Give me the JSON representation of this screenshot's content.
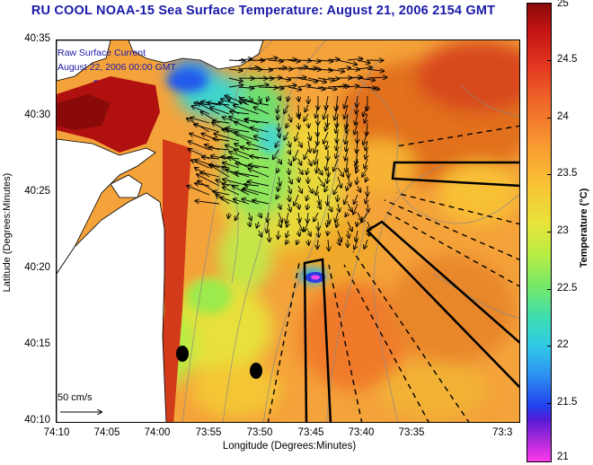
{
  "title": "RU COOL  NOAA-15  Sea Surface Temperature:  August 21, 2006 2154 GMT",
  "legend": {
    "line1": "Raw Surface Current",
    "line2": "August 22, 2006 00:00 GMT"
  },
  "scale_label": "50 cm/s",
  "x_axis": {
    "label": "Longitude (Degrees:Minutes)",
    "ticks": [
      "74:10",
      "74:05",
      "74:00",
      "73:55",
      "73:50",
      "73:45",
      "73:40",
      "73:35",
      "73:3"
    ]
  },
  "y_axis": {
    "label": "Latitude (Degrees:Minutes)",
    "ticks": [
      "40:35",
      "40:30",
      "40:25",
      "40:20",
      "40:15",
      "40:10"
    ]
  },
  "colorbar": {
    "label": "Temperature (°C)",
    "ticks": [
      "25",
      "24.5",
      "24",
      "23.5",
      "23",
      "22.5",
      "22",
      "21.5",
      "21"
    ],
    "range": [
      21,
      25
    ]
  },
  "colors": {
    "title": "#1a1aa8",
    "land": "#ffffff",
    "warm": "#c41414",
    "cool": "#30c8e8"
  }
}
